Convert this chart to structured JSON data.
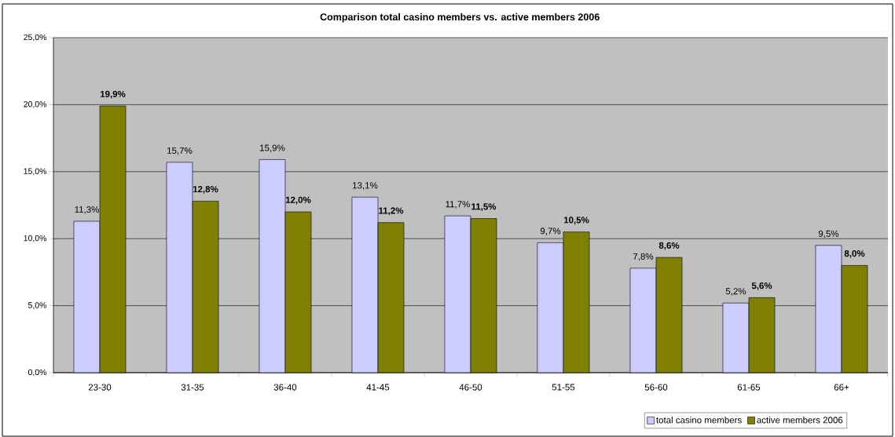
{
  "chart_data": {
    "type": "bar",
    "title": "Comparison total casino members vs. active members 2006",
    "categories": [
      "23-30",
      "31-35",
      "36-40",
      "41-45",
      "46-50",
      "51-55",
      "56-60",
      "61-65",
      "66+"
    ],
    "series": [
      {
        "name": "total casino members",
        "color": "#ccccff",
        "values": [
          11.3,
          15.7,
          15.9,
          13.1,
          11.7,
          9.7,
          7.8,
          5.2,
          9.5
        ],
        "value_labels": [
          "11,3%",
          "15,7%",
          "15,9%",
          "13,1%",
          "11,7%",
          "9,7%",
          "7,8%",
          "5,2%",
          "9,5%"
        ]
      },
      {
        "name": "active members 2006",
        "color": "#808000",
        "values": [
          19.9,
          12.8,
          12.0,
          11.2,
          11.5,
          10.5,
          8.6,
          5.6,
          8.0
        ],
        "value_labels": [
          "19,9%",
          "12,8%",
          "12,0%",
          "11,2%",
          "11,5%",
          "10,5%",
          "8,6%",
          "5,6%",
          "8,0%"
        ]
      }
    ],
    "ylim": [
      0,
      25
    ],
    "yticks": [
      {
        "value": 0,
        "label": "0,0%"
      },
      {
        "value": 5,
        "label": "5,0%"
      },
      {
        "value": 10,
        "label": "10,0%"
      },
      {
        "value": 15,
        "label": "15,0%"
      },
      {
        "value": 20,
        "label": "20,0%"
      },
      {
        "value": 25,
        "label": "25,0%"
      }
    ],
    "grid": "y",
    "legend": "bottom right"
  }
}
